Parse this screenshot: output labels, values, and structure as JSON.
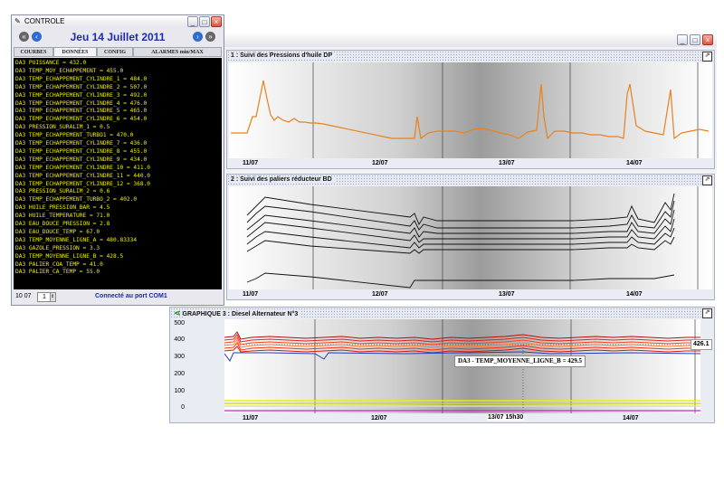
{
  "main_window": {
    "buttons": [
      "_",
      "□",
      "×"
    ]
  },
  "panel1": {
    "title": "1 : Suivi des Pressions d'huile DP",
    "x_labels": [
      "11/07",
      "12/07",
      "13/07",
      "14/07"
    ]
  },
  "panel2": {
    "title": "2 : Suivi des paliers réducteur BD",
    "x_labels": [
      "11/07",
      "12/07",
      "13/07",
      "14/07"
    ]
  },
  "panel3": {
    "title": "GRAPHIQUE 3 : Diesel Alternateur N°3",
    "x_labels": [
      "11/07",
      "12/07",
      "13/07 15h30",
      "14/07"
    ],
    "y_labels": [
      "500",
      "400",
      "300",
      "200",
      "100",
      "0"
    ],
    "value_tag": "426.1",
    "tooltip": "DA3 - TEMP_MOYENNE_LIGNE_B = 429.5"
  },
  "controle": {
    "title": "CONTROLE",
    "date": "Jeu 14 Juillet 2011",
    "tabs": [
      "COURBES",
      "DONNÉES",
      "CONFIG",
      "ALARMES min/MAX"
    ],
    "lines": [
      "DA3 PUISSANCE = 432.0",
      "DA3 TEMP_MOY_ECHAPPEMENT = 455.0",
      "DA3 TEMP_ECHAPPEMENT_CYLINDRE_1 = 484.0",
      "DA3 TEMP_ECHAPPEMENT_CYLINDRE_2 = 507.0",
      "DA3 TEMP_ECHAPPEMENT_CYLINDRE_3 = 492.0",
      "DA3 TEMP_ECHAPPEMENT_CYLINDRE_4 = 476.0",
      "DA3 TEMP_ECHAPPEMENT_CYLINDRE_5 = 465.0",
      "DA3 TEMP_ECHAPPEMENT_CYLINDRE_6 = 454.0",
      "DA3 PRESSION_SURALIM_1 = 0.5",
      "DA3 TEMP_ECHAPPEMENT_TURBO1 = 470.0",
      "DA3 TEMP_ECHAPPEMENT_CYLINDRE_7 = 436.0",
      "DA3 TEMP_ECHAPPEMENT_CYLINDRE_8 = 455.0",
      "DA3 TEMP_ECHAPPEMENT_CYLINDRE_9 = 434.0",
      "DA3 TEMP_ECHAPPEMENT_CYLINDRE_10 = 411.0",
      "DA3 TEMP_ECHAPPEMENT_CYLINDRE_11 = 440.0",
      "DA3 TEMP_ECHAPPEMENT_CYLINDRE_12 = 368.0",
      "DA3 PRESSION_SURALIM_2 = 0.6",
      "DA3 TEMP_ECHAPPEMENT_TURBO_2 = 402.0",
      "DA3 HUILE_PRESSION_BAR = 4.5",
      "DA3 HUILE_TEMPERATURE = 71.0",
      "DA3 EAU_DOUCE_PRESSION = 2.8",
      "DA3 EAU_DOUCE_TEMP = 67.0",
      "DA3 TEMP_MOYENNE_LIGNE_A = 480.83334",
      "DA3 GAZOLE_PRESSION = 3.3",
      "DA3 TEMP_MOYENNE_LIGNE_B = 428.5",
      "DA3 PALIER_COA_TEMP = 41.0",
      "DA3 PALIER_CA_TEMP = 55.0"
    ],
    "status_time": "10 07",
    "spinner_value": "1",
    "status": "Connecté au port COM1"
  },
  "colors": {
    "orange": "#e8821e",
    "red": "#e02010",
    "title_blue": "#1c2ea8",
    "data_yellow": "#f0f000"
  }
}
